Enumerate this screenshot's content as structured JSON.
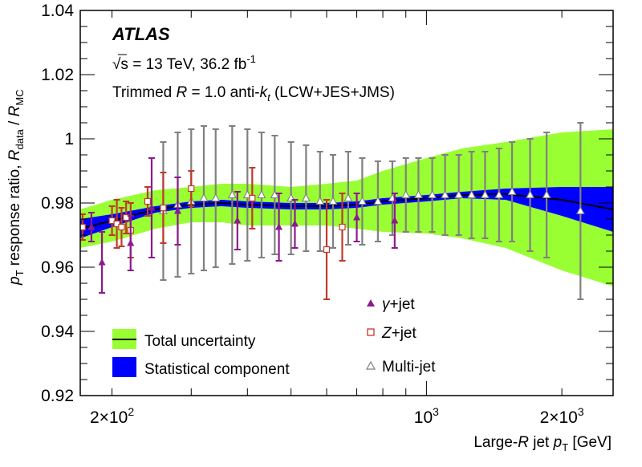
{
  "chart_data": {
    "type": "scatter",
    "x_scale": "log",
    "xlim": [
      170,
      2600
    ],
    "ylim": [
      0.92,
      1.04
    ],
    "y_ticks": [
      "0.92",
      "0.94",
      "0.96",
      "0.98",
      "1",
      "1.02",
      "1.04"
    ],
    "x_tick_labels": [
      {
        "value": 200,
        "mantissa": "2×10",
        "exp": "2"
      },
      {
        "value": 1000,
        "mantissa": "10",
        "exp": "3"
      },
      {
        "value": 2000,
        "mantissa": "2×10",
        "exp": "3"
      }
    ],
    "xlabel": {
      "main": "Large-",
      "var": "R",
      "mid": " jet ",
      "p": "p",
      "sub": "T",
      "unit": " [GeV]"
    },
    "ylabel": {
      "p": "p",
      "sub": "T",
      "text": " response ratio, ",
      "r1": "R",
      "sub1": "data",
      "slash": " / ",
      "r2": "R",
      "sub2": "MC"
    },
    "annotations": {
      "experiment": "ATLAS",
      "energy": "√s = 13 TeV, 36.2 fb",
      "lumi_exp": "-1",
      "jet_prefix": "Trimmed ",
      "jet_R": "R",
      "jet_mid": " = 1.0 anti-",
      "jet_k": "k",
      "jet_t": "t",
      "jet_suffix": " (LCW+JES+JMS)"
    },
    "legend_left": [
      {
        "label": "Total uncertainty",
        "color": "#99ff33"
      },
      {
        "label": "Statistical component",
        "color": "#0000ff"
      }
    ],
    "legend_right": [
      {
        "symbol": "filled-triangle",
        "sym": "γ",
        "label": "+jet",
        "color": "#8b1a8b"
      },
      {
        "symbol": "open-square",
        "sym": "Z",
        "label": "+jet",
        "color": "#c0392b"
      },
      {
        "symbol": "open-triangle",
        "sym": "",
        "label": "Multi-jet",
        "color": "#808080"
      }
    ],
    "colors": {
      "total": "#99ff33",
      "stat": "#0000ff",
      "central": "#000000",
      "gamma_jet": "#8b1a8b",
      "z_jet": "#c0392b",
      "multijet": "#808080"
    },
    "central_curve": [
      [
        170,
        0.972
      ],
      [
        200,
        0.9745
      ],
      [
        250,
        0.978
      ],
      [
        300,
        0.9795
      ],
      [
        350,
        0.98
      ],
      [
        400,
        0.9795
      ],
      [
        500,
        0.979
      ],
      [
        600,
        0.979
      ],
      [
        700,
        0.9795
      ],
      [
        800,
        0.9805
      ],
      [
        1000,
        0.9815
      ],
      [
        1200,
        0.9825
      ],
      [
        1500,
        0.9828
      ],
      [
        2000,
        0.981
      ],
      [
        2600,
        0.978
      ]
    ],
    "total_band": [
      [
        170,
        0.966,
        0.978
      ],
      [
        200,
        0.968,
        0.981
      ],
      [
        250,
        0.972,
        0.984
      ],
      [
        300,
        0.974,
        0.985
      ],
      [
        350,
        0.974,
        0.986
      ],
      [
        400,
        0.973,
        0.986
      ],
      [
        500,
        0.973,
        0.985
      ],
      [
        600,
        0.973,
        0.986
      ],
      [
        700,
        0.972,
        0.987
      ],
      [
        800,
        0.971,
        0.99
      ],
      [
        1000,
        0.9705,
        0.994
      ],
      [
        1200,
        0.969,
        0.997
      ],
      [
        1500,
        0.966,
        0.999
      ],
      [
        2000,
        0.959,
        1.002
      ],
      [
        2600,
        0.954,
        1.003
      ]
    ],
    "stat_band": [
      [
        170,
        0.969,
        0.975
      ],
      [
        200,
        0.9725,
        0.9765
      ],
      [
        250,
        0.977,
        0.979
      ],
      [
        300,
        0.9785,
        0.9805
      ],
      [
        350,
        0.979,
        0.981
      ],
      [
        400,
        0.9785,
        0.9805
      ],
      [
        500,
        0.978,
        0.98
      ],
      [
        600,
        0.978,
        0.98
      ],
      [
        700,
        0.9785,
        0.9805
      ],
      [
        800,
        0.9795,
        0.9815
      ],
      [
        1000,
        0.9805,
        0.9825
      ],
      [
        1200,
        0.9815,
        0.9835
      ],
      [
        1500,
        0.981,
        0.9845
      ],
      [
        2000,
        0.976,
        0.985
      ],
      [
        2600,
        0.971,
        0.985
      ]
    ],
    "series": [
      {
        "name": "γ+jet",
        "points": [
          [
            180,
            0.9725,
            0.0045
          ],
          [
            190,
            0.9615,
            0.0095
          ],
          [
            220,
            0.9675,
            0.0085
          ],
          [
            245,
            0.9785,
            0.0155
          ],
          [
            280,
            0.9775,
            0.0105
          ],
          [
            380,
            0.9745,
            0.009
          ],
          [
            470,
            0.9725,
            0.0105
          ],
          [
            510,
            0.9735,
            0.0075
          ],
          [
            700,
            0.9755,
            0.0075
          ],
          [
            850,
            0.9745,
            0.0085
          ]
        ]
      },
      {
        "name": "Z+jet",
        "points": [
          [
            172,
            0.9725,
            0.004
          ],
          [
            200,
            0.9745,
            0.0045
          ],
          [
            205,
            0.9735,
            0.0075
          ],
          [
            210,
            0.9725,
            0.006
          ],
          [
            215,
            0.9755,
            0.005
          ],
          [
            220,
            0.9715,
            0.0085
          ],
          [
            240,
            0.9805,
            0.0045
          ],
          [
            260,
            0.9785,
            0.011
          ],
          [
            300,
            0.9845,
            0.0055
          ],
          [
            410,
            0.9815,
            0.0095
          ],
          [
            600,
            0.9655,
            0.0155
          ],
          [
            650,
            0.9725,
            0.0105
          ]
        ]
      },
      {
        "name": "Multi-jet",
        "points": [
          [
            260,
            0.9775,
            0.0215
          ],
          [
            280,
            0.9795,
            0.0225
          ],
          [
            300,
            0.9805,
            0.0225
          ],
          [
            320,
            0.9815,
            0.0225
          ],
          [
            340,
            0.9815,
            0.0215
          ],
          [
            370,
            0.9825,
            0.0215
          ],
          [
            400,
            0.9825,
            0.0205
          ],
          [
            430,
            0.9825,
            0.0195
          ],
          [
            460,
            0.9825,
            0.0185
          ],
          [
            500,
            0.9815,
            0.0175
          ],
          [
            540,
            0.9815,
            0.0165
          ],
          [
            580,
            0.9805,
            0.0155
          ],
          [
            620,
            0.9805,
            0.0145
          ],
          [
            670,
            0.9815,
            0.0145
          ],
          [
            720,
            0.9805,
            0.0135
          ],
          [
            780,
            0.9805,
            0.0125
          ],
          [
            840,
            0.9815,
            0.0115
          ],
          [
            900,
            0.9825,
            0.0115
          ],
          [
            960,
            0.9825,
            0.0115
          ],
          [
            1030,
            0.9825,
            0.0115
          ],
          [
            1100,
            0.9825,
            0.0125
          ],
          [
            1180,
            0.9825,
            0.0125
          ],
          [
            1260,
            0.9825,
            0.0135
          ],
          [
            1350,
            0.9825,
            0.0135
          ],
          [
            1450,
            0.9825,
            0.0145
          ],
          [
            1550,
            0.9835,
            0.0155
          ],
          [
            1700,
            0.9825,
            0.0175
          ],
          [
            1850,
            0.9825,
            0.0195
          ],
          [
            2200,
            0.9775,
            0.0275
          ]
        ]
      }
    ]
  }
}
